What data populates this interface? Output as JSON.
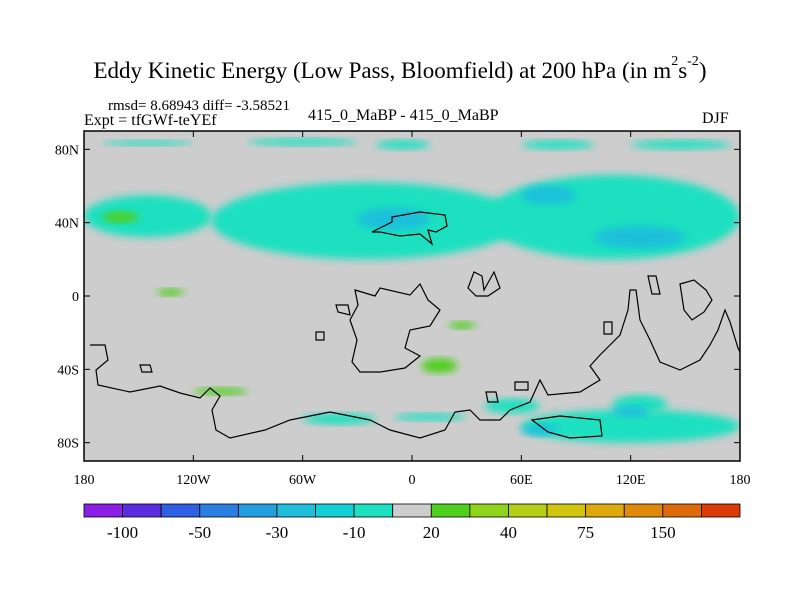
{
  "header": {
    "title_main": "Eddy Kinetic Energy (Low Pass, Bloomfield) at 200 hPa (in m",
    "title_sup1": "2",
    "title_mid": "s",
    "title_sup2": "-2",
    "title_end": ")",
    "stats": "rmsd= 8.68943 diff= -3.58521",
    "expt": "Expt = tfGWf-teYEf",
    "subtitle": "415_0_MaBP - 415_0_MaBP",
    "season": "DJF"
  },
  "chart_data": {
    "type": "heatmap",
    "projection": "cylindrical-equidistant",
    "xlim": [
      -180,
      180
    ],
    "ylim": [
      -90,
      90
    ],
    "x_ticks": [
      {
        "value": -180,
        "label": "180"
      },
      {
        "value": -120,
        "label": "120W"
      },
      {
        "value": -60,
        "label": "60W"
      },
      {
        "value": 0,
        "label": "0"
      },
      {
        "value": 60,
        "label": "60E"
      },
      {
        "value": 120,
        "label": "120E"
      },
      {
        "value": 180,
        "label": "180"
      }
    ],
    "y_ticks": [
      {
        "value": 80,
        "label": "80N"
      },
      {
        "value": 40,
        "label": "40N"
      },
      {
        "value": 0,
        "label": "0"
      },
      {
        "value": -40,
        "label": "40S"
      },
      {
        "value": -80,
        "label": "80S"
      }
    ],
    "colorbar": {
      "colors": [
        "#8b1fe6",
        "#5a2ee0",
        "#2f5fe2",
        "#2b7fe0",
        "#249fdd",
        "#1fbfdb",
        "#12cfd8",
        "#1de0c0",
        "#cdcdcd",
        "#4fcf1e",
        "#8fd41a",
        "#b4cf16",
        "#d2c510",
        "#dfa90e",
        "#e08a0c",
        "#df6a0b",
        "#dd3a0a"
      ],
      "labels": [
        {
          "boundary": 1,
          "text": "-100"
        },
        {
          "boundary": 3,
          "text": "-50"
        },
        {
          "boundary": 5,
          "text": "-30"
        },
        {
          "boundary": 7,
          "text": "-10"
        },
        {
          "boundary": 9,
          "text": "20"
        },
        {
          "boundary": 11,
          "text": "40"
        },
        {
          "boundary": 13,
          "text": "75"
        },
        {
          "boundary": 15,
          "text": "150"
        }
      ]
    },
    "regions": [
      {
        "level": -10,
        "lon": [
          -170,
          -120
        ],
        "lat": [
          82,
          85
        ]
      },
      {
        "level": -10,
        "lon": [
          -90,
          -30
        ],
        "lat": [
          82,
          86
        ]
      },
      {
        "level": -10,
        "lon": [
          -20,
          10
        ],
        "lat": [
          80,
          85
        ]
      },
      {
        "level": -10,
        "lon": [
          60,
          100
        ],
        "lat": [
          80,
          85
        ]
      },
      {
        "level": -10,
        "lon": [
          120,
          175
        ],
        "lat": [
          80,
          85
        ]
      },
      {
        "level": -10,
        "lon": [
          -180,
          -110
        ],
        "lat": [
          32,
          55
        ]
      },
      {
        "level": -10,
        "lon": [
          -110,
          60
        ],
        "lat": [
          20,
          62
        ]
      },
      {
        "level": -10,
        "lon": [
          40,
          180
        ],
        "lat": [
          20,
          66
        ]
      },
      {
        "level": -30,
        "lon": [
          -30,
          10
        ],
        "lat": [
          36,
          48
        ]
      },
      {
        "level": -30,
        "lon": [
          60,
          90
        ],
        "lat": [
          50,
          60
        ]
      },
      {
        "level": -30,
        "lon": [
          100,
          150
        ],
        "lat": [
          26,
          38
        ]
      },
      {
        "level": 20,
        "lon": [
          -170,
          -150
        ],
        "lat": [
          40,
          46
        ]
      },
      {
        "level": 20,
        "lon": [
          -140,
          -125
        ],
        "lat": [
          0,
          4
        ]
      },
      {
        "level": 20,
        "lon": [
          20,
          35
        ],
        "lat": [
          -18,
          -14
        ]
      },
      {
        "level": 20,
        "lon": [
          5,
          25
        ],
        "lat": [
          -42,
          -34
        ]
      },
      {
        "level": 20,
        "lon": [
          -120,
          -90
        ],
        "lat": [
          -54,
          -50
        ]
      },
      {
        "level": -10,
        "lon": [
          40,
          70
        ],
        "lat": [
          -64,
          -56
        ]
      },
      {
        "level": -10,
        "lon": [
          110,
          140
        ],
        "lat": [
          -64,
          -54
        ]
      },
      {
        "level": -10,
        "lon": [
          60,
          180
        ],
        "lat": [
          -80,
          -62
        ]
      },
      {
        "level": -10,
        "lon": [
          -60,
          -20
        ],
        "lat": [
          -70,
          -64
        ]
      },
      {
        "level": -10,
        "lon": [
          -10,
          30
        ],
        "lat": [
          -68,
          -64
        ]
      },
      {
        "level": -30,
        "lon": [
          60,
          80
        ],
        "lat": [
          -76,
          -70
        ]
      },
      {
        "level": -30,
        "lon": [
          110,
          130
        ],
        "lat": [
          -66,
          -60
        ]
      }
    ]
  }
}
